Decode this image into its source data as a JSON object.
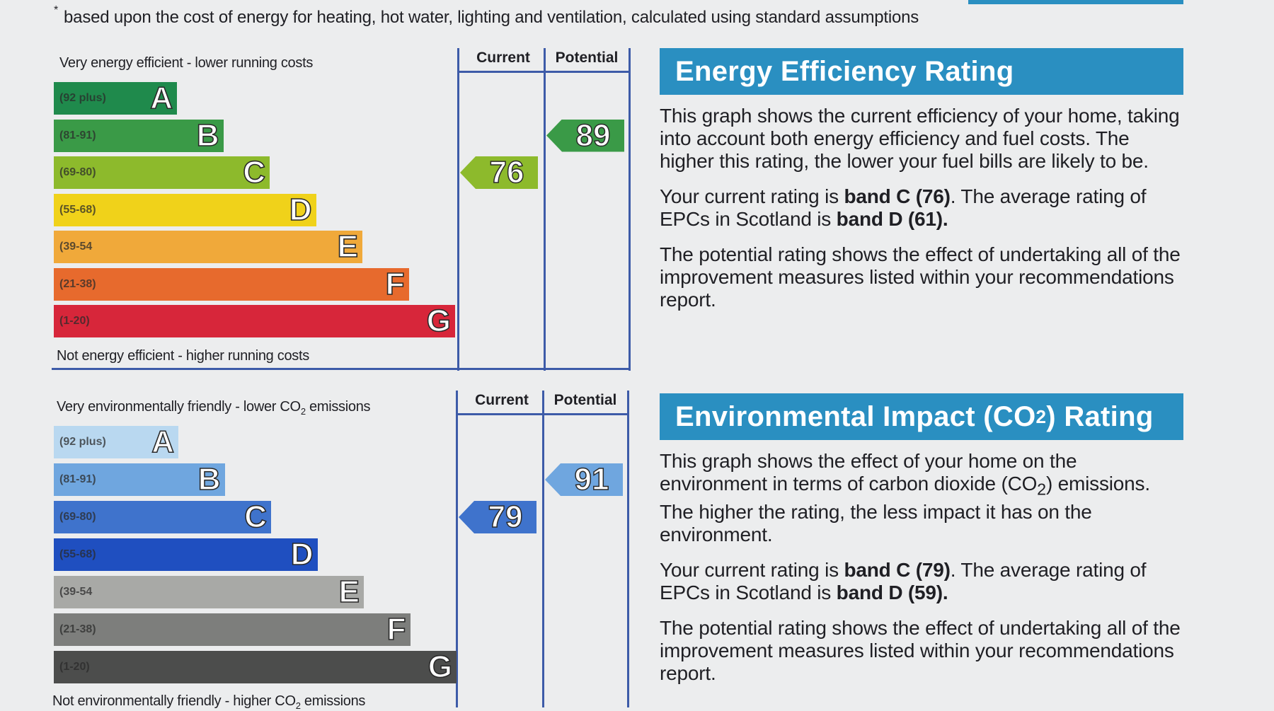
{
  "footnote": {
    "marker": "*",
    "text": "based upon the cost of energy for heating, hot water, lighting and ventilation, calculated using standard assumptions"
  },
  "energy_chart": {
    "top_caption": "Very energy efficient - lower running costs",
    "bottom_caption": "Not energy efficient - higher running costs",
    "column_current": "Current",
    "column_potential": "Potential",
    "current_band": "C",
    "current_value": 76,
    "potential_band": "B",
    "potential_value": 89,
    "bands": [
      {
        "range": "(92 plus)",
        "letter": "A",
        "color": "#1f8a4c"
      },
      {
        "range": "(81-91)",
        "letter": "B",
        "color": "#3a9a47"
      },
      {
        "range": "(69-80)",
        "letter": "C",
        "color": "#8dba2c"
      },
      {
        "range": "(55-68)",
        "letter": "D",
        "color": "#f0d21a"
      },
      {
        "range": "(39-54",
        "letter": "E",
        "color": "#f0a93a"
      },
      {
        "range": "(21-38)",
        "letter": "F",
        "color": "#e76a2d"
      },
      {
        "range": "(1-20)",
        "letter": "G",
        "color": "#d7263a"
      }
    ]
  },
  "env_chart": {
    "top_caption_pre": "Very environmentally friendly - lower CO",
    "top_caption_sub": "2",
    "top_caption_post": " emissions",
    "bottom_caption_pre": "Not environmentally friendly - higher CO",
    "bottom_caption_sub": "2",
    "bottom_caption_post": " emissions",
    "column_current": "Current",
    "column_potential": "Potential",
    "current_band": "C",
    "current_value": 79,
    "potential_band": "B",
    "potential_value": 91,
    "bands": [
      {
        "range": "(92 plus)",
        "letter": "A",
        "color": "#b9d8f0"
      },
      {
        "range": "(81-91)",
        "letter": "B",
        "color": "#6fa6df"
      },
      {
        "range": "(69-80)",
        "letter": "C",
        "color": "#3f73cc"
      },
      {
        "range": "(55-68)",
        "letter": "D",
        "color": "#1f4fc0"
      },
      {
        "range": "(39-54",
        "letter": "E",
        "color": "#a8a9a6"
      },
      {
        "range": "(21-38)",
        "letter": "F",
        "color": "#7d7e7c"
      },
      {
        "range": "(1-20)",
        "letter": "G",
        "color": "#4c4d4c"
      }
    ]
  },
  "energy_panel": {
    "title": "Energy Efficiency Rating",
    "p1": "This graph shows the current efficiency of your home, taking into account both energy efficiency and fuel costs. The higher this rating, the lower your fuel bills are likely to be.",
    "p2_pre": "Your current rating is ",
    "p2_bold1": "band C (76)",
    "p2_mid": ". The average rating of EPCs in Scotland is ",
    "p2_bold2": "band D (61).",
    "p3": "The potential rating shows the effect of undertaking all of the improvement measures listed within your recommendations report."
  },
  "env_panel": {
    "title_pre": "Environmental Impact (CO",
    "title_sub": "2",
    "title_post": ") Rating",
    "p1_pre": "This graph shows the effect of your home on the environment in terms of carbon dioxide (CO",
    "p1_sub": "2",
    "p1_post": ") emissions. The higher the rating, the less impact it has on the environment.",
    "p2_pre": "Your current rating is ",
    "p2_bold1": "band C (79)",
    "p2_mid": ". The average rating of EPCs in Scotland is ",
    "p2_bold2": "band D (59).",
    "p3": "The potential rating shows the effect of undertaking all of the improvement measures listed within your recommendations report."
  }
}
